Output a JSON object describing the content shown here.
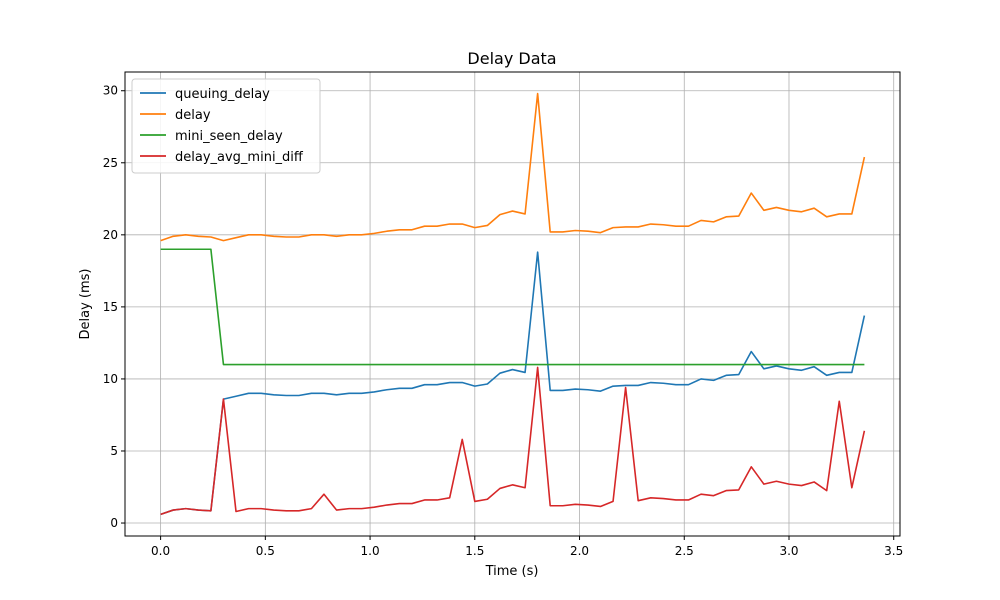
{
  "chart_data": {
    "type": "line",
    "title": "Delay Data",
    "xlabel": "Time (s)",
    "ylabel": "Delay (ms)",
    "xlim": [
      -0.17,
      3.53
    ],
    "ylim": [
      -0.9,
      31.3
    ],
    "xticks": [
      0.0,
      0.5,
      1.0,
      1.5,
      2.0,
      2.5,
      3.0,
      3.5
    ],
    "xtick_labels": [
      "0.0",
      "0.5",
      "1.0",
      "1.5",
      "2.0",
      "2.5",
      "3.0",
      "3.5"
    ],
    "yticks": [
      0,
      5,
      10,
      15,
      20,
      25,
      30
    ],
    "ytick_labels": [
      "0",
      "5",
      "10",
      "15",
      "20",
      "25",
      "30"
    ],
    "grid": true,
    "legend_position": "top-left",
    "x": [
      0.0,
      0.06,
      0.12,
      0.18,
      0.24,
      0.3,
      0.36,
      0.42,
      0.48,
      0.54,
      0.6,
      0.66,
      0.72,
      0.78,
      0.84,
      0.9,
      0.96,
      1.02,
      1.08,
      1.14,
      1.2,
      1.26,
      1.32,
      1.38,
      1.44,
      1.5,
      1.56,
      1.62,
      1.68,
      1.74,
      1.8,
      1.86,
      1.92,
      1.98,
      2.04,
      2.1,
      2.16,
      2.22,
      2.28,
      2.34,
      2.4,
      2.46,
      2.52,
      2.58,
      2.64,
      2.7,
      2.76,
      2.82,
      2.88,
      2.94,
      3.0,
      3.06,
      3.12,
      3.18,
      3.24,
      3.3,
      3.36
    ],
    "series": [
      {
        "name": "queuing_delay",
        "color": "#1f77b4",
        "values": [
          0.6,
          0.9,
          1.0,
          0.9,
          0.85,
          8.6,
          8.8,
          9.0,
          9.0,
          8.9,
          8.85,
          8.85,
          9.0,
          9.0,
          8.9,
          9.0,
          9.0,
          9.1,
          9.25,
          9.35,
          9.35,
          9.6,
          9.6,
          9.75,
          9.75,
          9.5,
          9.65,
          10.4,
          10.65,
          10.45,
          18.8,
          9.2,
          9.2,
          9.3,
          9.25,
          9.15,
          9.5,
          9.55,
          9.55,
          9.75,
          9.7,
          9.6,
          9.6,
          10.0,
          9.9,
          10.25,
          10.3,
          11.9,
          10.7,
          10.9,
          10.7,
          10.6,
          10.85,
          10.25,
          10.45,
          10.45,
          14.4
        ]
      },
      {
        "name": "delay",
        "color": "#ff7f0e",
        "values": [
          19.6,
          19.9,
          20.0,
          19.9,
          19.85,
          19.6,
          19.8,
          20.0,
          20.0,
          19.9,
          19.85,
          19.85,
          20.0,
          20.0,
          19.9,
          20.0,
          20.0,
          20.1,
          20.25,
          20.35,
          20.35,
          20.6,
          20.6,
          20.75,
          20.75,
          20.5,
          20.65,
          21.4,
          21.65,
          21.45,
          29.8,
          20.2,
          20.2,
          20.3,
          20.25,
          20.15,
          20.5,
          20.55,
          20.55,
          20.75,
          20.7,
          20.6,
          20.6,
          21.0,
          20.9,
          21.25,
          21.3,
          22.9,
          21.7,
          21.9,
          21.7,
          21.6,
          21.85,
          21.25,
          21.45,
          21.45,
          25.4
        ]
      },
      {
        "name": "mini_seen_delay",
        "color": "#2ca02c",
        "values": [
          19.0,
          19.0,
          19.0,
          19.0,
          19.0,
          11.0,
          11.0,
          11.0,
          11.0,
          11.0,
          11.0,
          11.0,
          11.0,
          11.0,
          11.0,
          11.0,
          11.0,
          11.0,
          11.0,
          11.0,
          11.0,
          11.0,
          11.0,
          11.0,
          11.0,
          11.0,
          11.0,
          11.0,
          11.0,
          11.0,
          11.0,
          11.0,
          11.0,
          11.0,
          11.0,
          11.0,
          11.0,
          11.0,
          11.0,
          11.0,
          11.0,
          11.0,
          11.0,
          11.0,
          11.0,
          11.0,
          11.0,
          11.0,
          11.0,
          11.0,
          11.0,
          11.0,
          11.0,
          11.0,
          11.0,
          11.0,
          11.0
        ]
      },
      {
        "name": "delay_avg_mini_diff",
        "color": "#d62728",
        "values": [
          0.6,
          0.9,
          1.0,
          0.9,
          0.85,
          8.6,
          0.8,
          1.0,
          1.0,
          0.9,
          0.85,
          0.85,
          1.0,
          2.0,
          0.9,
          1.0,
          1.0,
          1.1,
          1.25,
          1.35,
          1.35,
          1.6,
          1.6,
          1.75,
          5.8,
          1.5,
          1.65,
          2.4,
          2.65,
          2.45,
          10.8,
          1.2,
          1.2,
          1.3,
          1.25,
          1.15,
          1.5,
          9.4,
          1.55,
          1.75,
          1.7,
          1.6,
          1.6,
          2.0,
          1.9,
          2.25,
          2.3,
          3.9,
          2.7,
          2.9,
          2.7,
          2.6,
          2.85,
          2.25,
          8.45,
          2.45,
          6.4
        ]
      }
    ]
  }
}
